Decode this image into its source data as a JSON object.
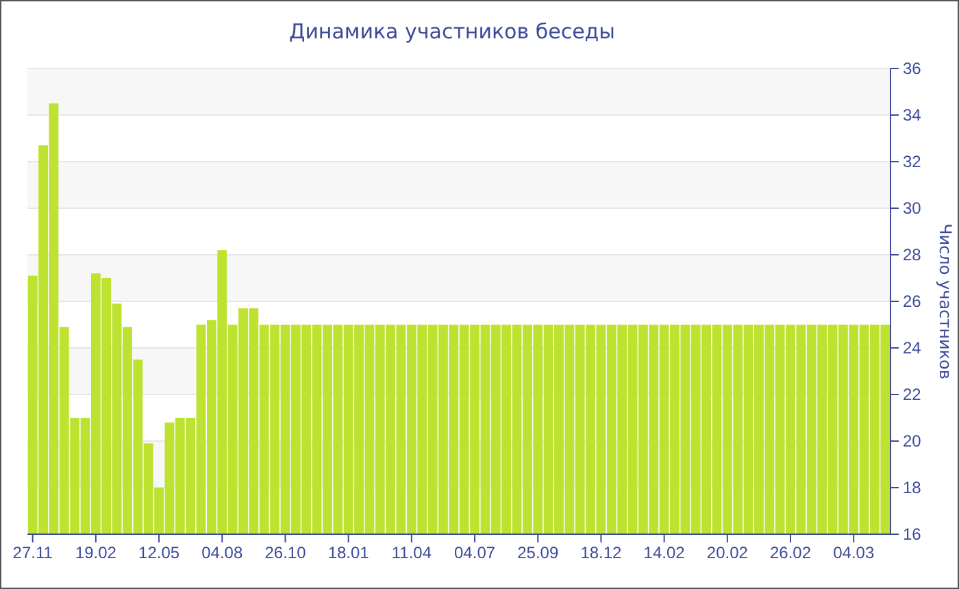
{
  "chart_data": {
    "type": "bar",
    "title": "Динамика участников беседы",
    "ylabel": "Число участников",
    "categories": [
      "27.11",
      null,
      null,
      null,
      null,
      null,
      "19.02",
      null,
      null,
      null,
      null,
      null,
      "12.05",
      null,
      null,
      null,
      null,
      null,
      "04.08",
      null,
      null,
      null,
      null,
      null,
      "26.10",
      null,
      null,
      null,
      null,
      null,
      "18.01",
      null,
      null,
      null,
      null,
      null,
      "11.04",
      null,
      null,
      null,
      null,
      null,
      "04.07",
      null,
      null,
      null,
      null,
      null,
      "25.09",
      null,
      null,
      null,
      null,
      null,
      "18.12",
      null,
      null,
      null,
      null,
      null,
      "14.02",
      null,
      null,
      null,
      null,
      null,
      "20.02",
      null,
      null,
      null,
      null,
      null,
      "26.02",
      null,
      null,
      null,
      null,
      null,
      "04.03",
      null,
      null,
      null
    ],
    "values": [
      27.1,
      32.7,
      34.5,
      24.9,
      21,
      21,
      27.2,
      27,
      25.9,
      24.9,
      23.5,
      19.9,
      18,
      20.8,
      21,
      21,
      25,
      25.2,
      28.2,
      25,
      25.7,
      25.7,
      25,
      25,
      25,
      25,
      25,
      25,
      25,
      25,
      25,
      25,
      25,
      25,
      25,
      25,
      25,
      25,
      25,
      25,
      25,
      25,
      25,
      25,
      25,
      25,
      25,
      25,
      25,
      25,
      25,
      25,
      25,
      25,
      25,
      25,
      25,
      25,
      25,
      25,
      25,
      25,
      25,
      25,
      25,
      25,
      25,
      25,
      25,
      25,
      25,
      25,
      25,
      25,
      25,
      25,
      25,
      25,
      25,
      25,
      25,
      25
    ],
    "color": "#bde22f",
    "ylim": [
      16,
      36
    ],
    "yticks": [
      16,
      18,
      20,
      22,
      24,
      26,
      28,
      30,
      32,
      34,
      36
    ],
    "grid": "y"
  }
}
